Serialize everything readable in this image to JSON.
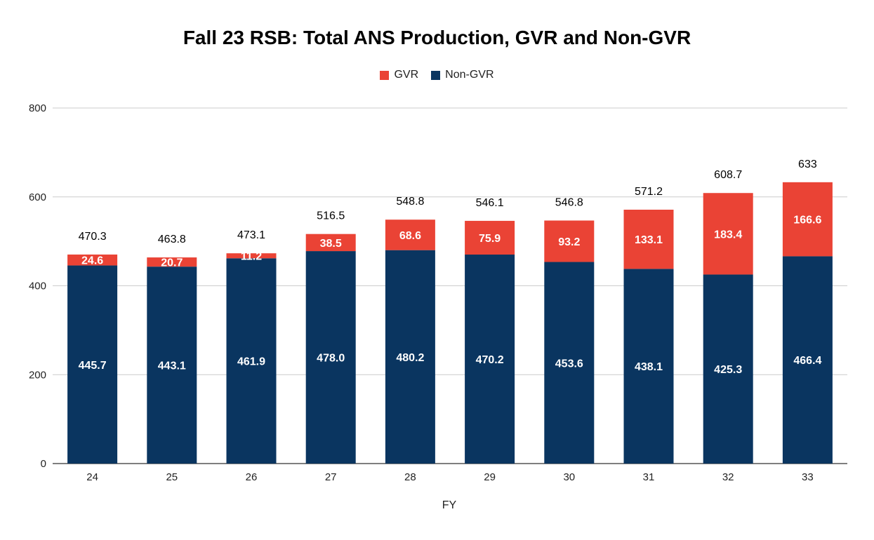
{
  "chart_data": {
    "type": "bar",
    "stacked": true,
    "title": "Fall 23 RSB: Total ANS Production, GVR and Non-GVR",
    "xlabel": "FY",
    "ylabel": "",
    "categories": [
      "24",
      "25",
      "26",
      "27",
      "28",
      "29",
      "30",
      "31",
      "32",
      "33"
    ],
    "series": [
      {
        "name": "Non-GVR",
        "color": "#0a3560",
        "values": [
          445.7,
          443.1,
          461.9,
          478.0,
          480.2,
          470.2,
          453.6,
          438.1,
          425.3,
          466.4
        ],
        "labels": [
          "445.7",
          "443.1",
          "461.9",
          "478.0",
          "480.2",
          "470.2",
          "453.6",
          "438.1",
          "425.3",
          "466.4"
        ]
      },
      {
        "name": "GVR",
        "color": "#ea4335",
        "values": [
          24.6,
          20.7,
          11.2,
          38.5,
          68.6,
          75.9,
          93.2,
          133.1,
          183.4,
          166.6
        ],
        "labels": [
          "24.6",
          "20.7",
          "11.2",
          "38.5",
          "68.6",
          "75.9",
          "93.2",
          "133.1",
          "183.4",
          "166.6"
        ]
      }
    ],
    "totals": [
      "470.3",
      "463.8",
      "473.1",
      "516.5",
      "548.8",
      "546.1",
      "546.8",
      "571.2",
      "608.7",
      "633"
    ],
    "ylim": [
      0,
      800
    ],
    "yticks": [
      "0",
      "200",
      "400",
      "600",
      "800"
    ],
    "grid": true,
    "legend_position": "top-center"
  }
}
